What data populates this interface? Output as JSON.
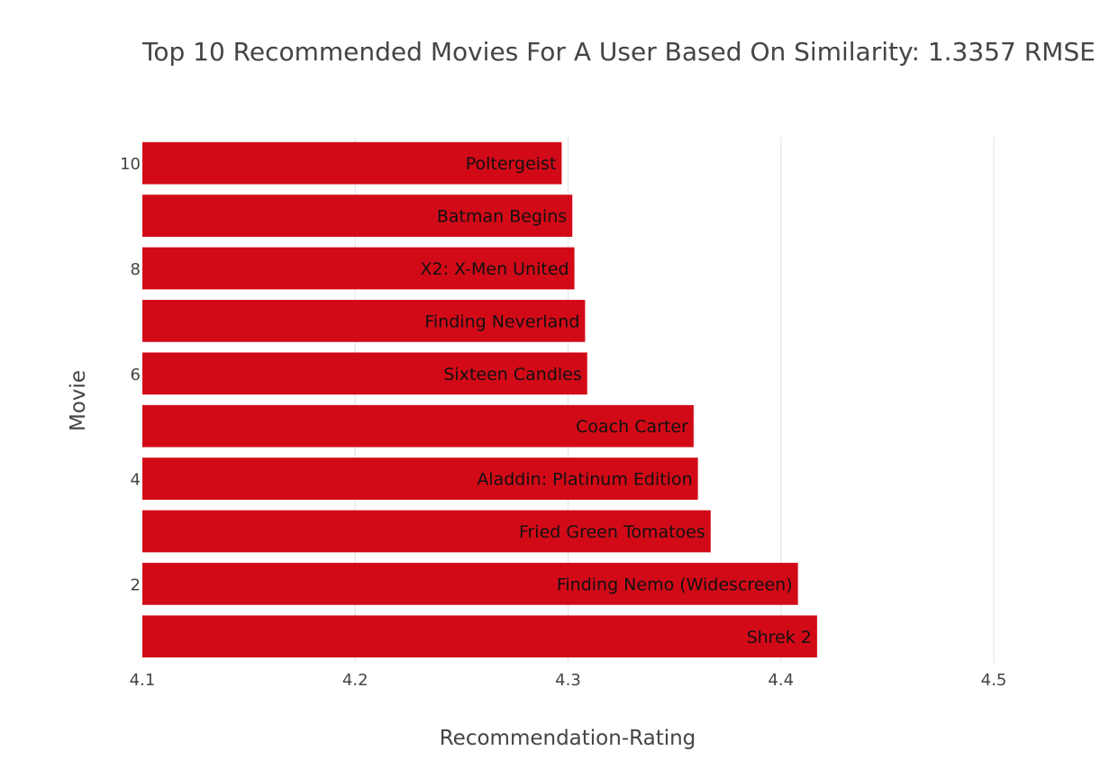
{
  "chart_data": {
    "type": "bar",
    "orientation": "horizontal",
    "title": "Top 10 Recommended Movies For A User Based On Similarity: 1.3357 RMSE",
    "xlabel": "Recommendation-Rating",
    "ylabel": "Movie",
    "xlim": [
      4.1,
      4.5
    ],
    "ylim": [
      0.5,
      10.5
    ],
    "x_ticks": [
      "4.1",
      "4.2",
      "4.3",
      "4.4",
      "4.5"
    ],
    "y_ticks": [
      "2",
      "4",
      "6",
      "8",
      "10"
    ],
    "grid": true,
    "bar_color": "#d20a18",
    "bars": [
      {
        "rank": 1,
        "label": "Shrek 2",
        "value": 4.417
      },
      {
        "rank": 2,
        "label": "Finding Nemo (Widescreen)",
        "value": 4.408
      },
      {
        "rank": 3,
        "label": "Fried Green Tomatoes",
        "value": 4.367
      },
      {
        "rank": 4,
        "label": "Aladdin: Platinum Edition",
        "value": 4.361
      },
      {
        "rank": 5,
        "label": "Coach Carter",
        "value": 4.359
      },
      {
        "rank": 6,
        "label": "Sixteen Candles",
        "value": 4.309
      },
      {
        "rank": 7,
        "label": "Finding Neverland",
        "value": 4.308
      },
      {
        "rank": 8,
        "label": "X2: X-Men United",
        "value": 4.303
      },
      {
        "rank": 9,
        "label": "Batman Begins",
        "value": 4.302
      },
      {
        "rank": 10,
        "label": "Poltergeist",
        "value": 4.297
      }
    ]
  }
}
